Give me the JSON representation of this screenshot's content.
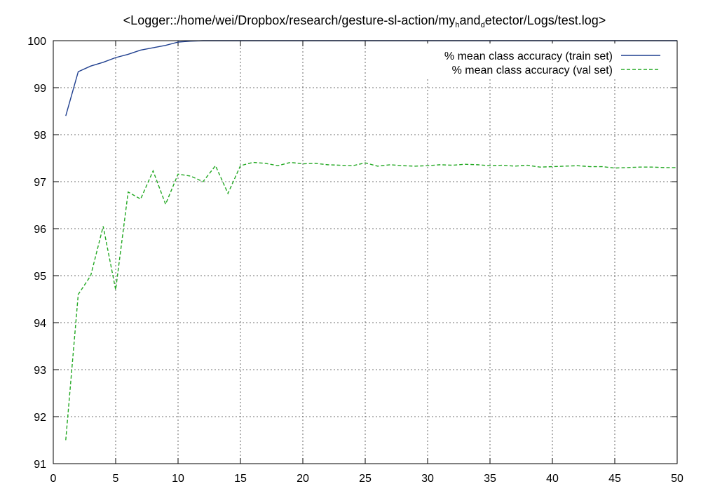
{
  "chart_data": {
    "type": "line",
    "title": {
      "parts": [
        {
          "text": "<Logger::/home/wei/Dropbox/research/gesture-sl-action/my",
          "sub": false
        },
        {
          "text": "h",
          "sub": true
        },
        {
          "text": "and",
          "sub": false
        },
        {
          "text": "d",
          "sub": true
        },
        {
          "text": "etector/Logs/test.log>",
          "sub": false
        }
      ]
    },
    "xlabel": "",
    "ylabel": "",
    "xlim": [
      0,
      50
    ],
    "ylim": [
      91,
      100
    ],
    "xticks": [
      0,
      5,
      10,
      15,
      20,
      25,
      30,
      35,
      40,
      45,
      50
    ],
    "yticks": [
      91,
      92,
      93,
      94,
      95,
      96,
      97,
      98,
      99,
      100
    ],
    "grid": true,
    "legend_position": "top-right",
    "series": [
      {
        "name": "% mean class accuracy (train set)",
        "color": "#1f3f8f",
        "dash": "solid",
        "x": [
          1,
          2,
          3,
          4,
          5,
          6,
          7,
          8,
          9,
          10,
          11,
          12,
          13,
          14,
          15,
          16,
          17,
          18,
          19,
          20,
          21,
          22,
          23,
          24,
          25,
          26,
          27,
          28,
          29,
          30,
          31,
          32,
          33,
          34,
          35,
          36,
          37,
          38,
          39,
          40,
          41,
          42,
          43,
          44,
          45,
          46,
          47,
          48,
          49,
          50
        ],
        "y": [
          98.4,
          99.34,
          99.46,
          99.54,
          99.64,
          99.71,
          99.8,
          99.85,
          99.9,
          99.97,
          99.99,
          100,
          100,
          100,
          100,
          100,
          100,
          100,
          100,
          100,
          100,
          100,
          100,
          100,
          100,
          100,
          100,
          100,
          100,
          100,
          100,
          100,
          100,
          100,
          100,
          100,
          100,
          100,
          100,
          100,
          100,
          100,
          100,
          100,
          100,
          100,
          100,
          100,
          100,
          100
        ]
      },
      {
        "name": "% mean class accuracy (val set)",
        "color": "#22a822",
        "dash": "dashed",
        "x": [
          1,
          2,
          3,
          4,
          5,
          6,
          7,
          8,
          9,
          10,
          11,
          12,
          13,
          14,
          15,
          16,
          17,
          18,
          19,
          20,
          21,
          22,
          23,
          24,
          25,
          26,
          27,
          28,
          29,
          30,
          31,
          32,
          33,
          34,
          35,
          36,
          37,
          38,
          39,
          40,
          41,
          42,
          43,
          44,
          45,
          46,
          47,
          48,
          49,
          50
        ],
        "y": [
          91.5,
          94.6,
          95.0,
          96.05,
          94.7,
          96.78,
          96.63,
          97.23,
          96.52,
          97.16,
          97.12,
          97.0,
          97.34,
          96.75,
          97.34,
          97.41,
          97.39,
          97.34,
          97.41,
          97.38,
          97.39,
          97.36,
          97.35,
          97.34,
          97.4,
          97.33,
          97.36,
          97.34,
          97.33,
          97.34,
          97.36,
          97.35,
          97.37,
          97.36,
          97.34,
          97.35,
          97.33,
          97.35,
          97.31,
          97.32,
          97.33,
          97.34,
          97.32,
          97.32,
          97.29,
          97.3,
          97.31,
          97.31,
          97.3,
          97.3
        ]
      }
    ]
  }
}
